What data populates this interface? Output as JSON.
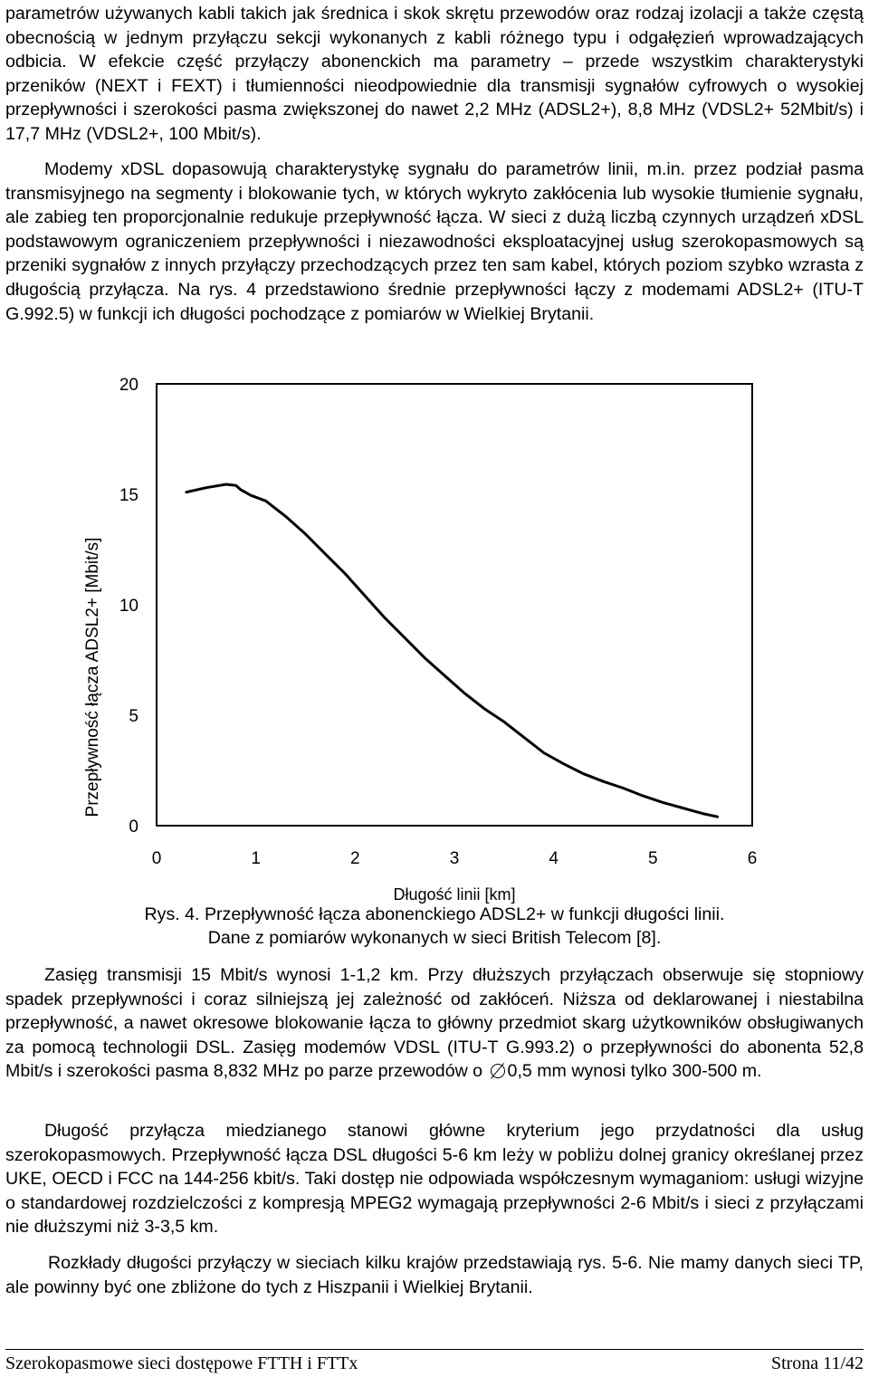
{
  "paragraphs": {
    "p1": "parametrów używanych kabli takich jak średnica i skok skrętu przewodów oraz rodzaj izolacji a także częstą obecnością w jednym przyłączu sekcji wykonanych z kabli różnego typu i odgałęzień wprowadzających odbicia. W efekcie część przyłączy abonenckich ma parametry – przede wszystkim charakterystyki przeników (NEXT i FEXT) i tłumienności nieodpowiednie dla transmisji sygnałów cyfrowych o wysokiej przepływności i szerokości pasma zwiększonej do nawet 2,2 MHz (ADSL2+), 8,8 MHz (VDSL2+ 52Mbit/s) i 17,7 MHz (VDSL2+, 100 Mbit/s).",
    "p2": "Modemy xDSL dopasowują charakterystykę sygnału do parametrów linii, m.in. przez podział pasma transmisyjnego na segmenty i blokowanie tych, w których wykryto zakłócenia lub wysokie tłumienie sygnału, ale zabieg ten proporcjonalnie redukuje przepływność łącza. W sieci z dużą liczbą czynnych urządzeń xDSL podstawowym ograniczeniem przepływności i niezawodności eksploatacyjnej usług szerokopasmowych są przeniki sygnałów z innych przyłączy przechodzących przez ten sam kabel, których poziom szybko wzrasta z długością przyłącza. Na rys. 4 przedstawiono średnie przepływności łączy z modemami ADSL2+ (ITU-T G.992.5) w funkcji ich długości pochodzące z pomiarów w Wielkiej Brytanii.",
    "p3_before": "Zasięg transmisji 15 Mbit/s wynosi 1-1,2 km. Przy dłuższych przyłączach obserwuje się stopniowy spadek przepływności i coraz silniejszą jej zależność od zakłóceń. Niższa od deklarowanej i niestabilna przepływność, a nawet okresowe blokowanie łącza to główny przedmiot skarg użytkowników obsługiwanych za pomocą technologii DSL. Zasięg modemów VDSL (ITU-T G.993.2) o przepływności do abonenta 52,8 Mbit/s i szerokości pasma 8,832 MHz po parze przewodów o",
    "p3_after": "0,5 mm wynosi tylko 300-500 m.",
    "p4": "Długość przyłącza miedzianego stanowi główne kryterium jego przydatności dla usług szerokopasmowych. Przepływność łącza DSL długości 5-6 km leży w pobliżu dolnej granicy określanej przez UKE, OECD i FCC na 144-256 kbit/s. Taki dostęp nie odpowiada współczesnym wymaganiom: usługi wizyjne o standardowej rozdzielczości z kompresją MPEG2 wymagają przepływności 2-6 Mbit/s i sieci z przyłączami nie dłuższymi niż 3-3,5 km.",
    "p5": "Rozkłady długości przyłączy w sieciach kilku krajów przedstawiają rys. 5-6. Nie mamy danych sieci TP, ale powinny być one zbliżone do tych z Hiszpanii i Wielkiej Brytanii."
  },
  "figure": {
    "caption_line1": "Rys. 4. Przepływność łącza abonenckiego ADSL2+ w funkcji długości linii.",
    "caption_line2": "Dane z pomiarów wykonanych w sieci British Telecom [8]."
  },
  "footer": {
    "left": "Szerokopasmowe sieci dostępowe FTTH i FTTx",
    "right": "Strona 11/42"
  },
  "chart_data": {
    "type": "line",
    "xlabel": "Długość linii [km]",
    "ylabel": "Przepływność łącza ADSL2+ [Mbit/s]",
    "xlim": [
      0,
      6
    ],
    "ylim": [
      0,
      20
    ],
    "xticks": [
      "0",
      "1",
      "2",
      "3",
      "4",
      "5",
      "6"
    ],
    "yticks": [
      "0",
      "5",
      "10",
      "15",
      "20"
    ],
    "grid": false,
    "series": [
      {
        "color": "#000000",
        "x": [
          0.3,
          0.5,
          0.7,
          0.8,
          0.85,
          0.95,
          1.1,
          1.3,
          1.5,
          1.7,
          1.9,
          2.1,
          2.3,
          2.5,
          2.7,
          2.9,
          3.1,
          3.3,
          3.5,
          3.7,
          3.9,
          4.1,
          4.3,
          4.5,
          4.7,
          4.9,
          5.1,
          5.3,
          5.5,
          5.65
        ],
        "y": [
          15.1,
          15.3,
          15.45,
          15.4,
          15.2,
          14.95,
          14.7,
          14.0,
          13.2,
          12.3,
          11.4,
          10.4,
          9.4,
          8.5,
          7.6,
          6.8,
          6.0,
          5.3,
          4.7,
          4.0,
          3.3,
          2.8,
          2.35,
          2.0,
          1.7,
          1.35,
          1.05,
          0.8,
          0.55,
          0.4
        ]
      }
    ]
  }
}
